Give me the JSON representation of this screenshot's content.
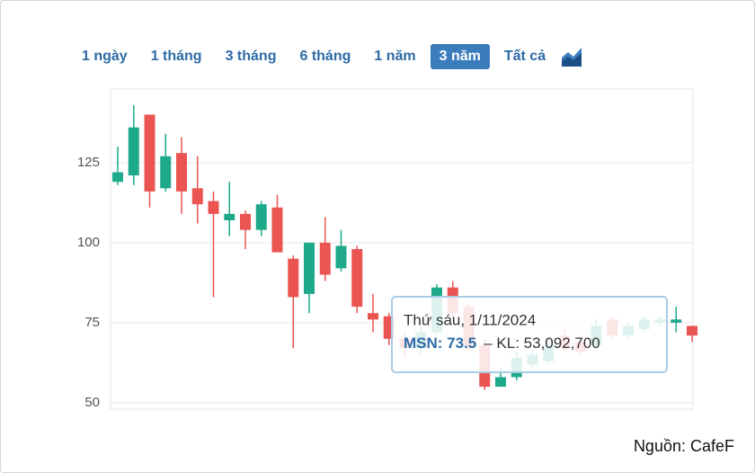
{
  "range_buttons": [
    "1 ngày",
    "1 tháng",
    "3 tháng",
    "6 tháng",
    "1 năm",
    "3 năm",
    "Tất cả"
  ],
  "active_range": 5,
  "chart_data": {
    "type": "candlestick",
    "open": [
      119,
      121,
      140,
      117,
      128,
      117,
      113,
      107,
      109,
      104,
      111,
      95,
      84,
      100,
      92,
      98,
      78,
      77,
      70,
      67,
      72,
      86,
      80,
      68,
      55,
      58,
      62,
      63,
      71,
      69,
      68,
      76,
      71,
      73,
      75,
      75,
      74
    ],
    "high": [
      130,
      143,
      140,
      134,
      133,
      127,
      116,
      119,
      110,
      113,
      115,
      96,
      100,
      108,
      104,
      99,
      84,
      78,
      72,
      74,
      87,
      88,
      81,
      70,
      61,
      66,
      67,
      70,
      73,
      71,
      76,
      77,
      75,
      77,
      77,
      80,
      74
    ],
    "low": [
      118,
      118,
      111,
      116,
      109,
      106,
      83,
      102,
      98,
      102,
      97,
      67,
      78,
      88,
      91,
      78,
      72,
      68,
      64,
      65,
      71,
      76,
      66,
      54,
      55,
      57,
      61,
      62,
      66,
      65,
      67,
      70,
      70,
      72,
      74,
      72,
      69
    ],
    "close": [
      122,
      136,
      116,
      127,
      116,
      112,
      109,
      109,
      104,
      112,
      97,
      83,
      100,
      90,
      99,
      80,
      76,
      70,
      67,
      72,
      86,
      78,
      68,
      55,
      58,
      64,
      65,
      68,
      67,
      66,
      74,
      71,
      74,
      76,
      76,
      76,
      71
    ],
    "ylim": [
      48,
      148
    ],
    "yticks": [
      50,
      75,
      100,
      125
    ],
    "grid": true,
    "up_color": "#1fa98b",
    "down_color": "#ea5451",
    "tooltip": {
      "title": "Thứ sáu, 1/11/2024",
      "series": "MSN: 73.5",
      "detail": "– KL: 53,092,700"
    }
  },
  "source": "Nguồn: CafeF"
}
